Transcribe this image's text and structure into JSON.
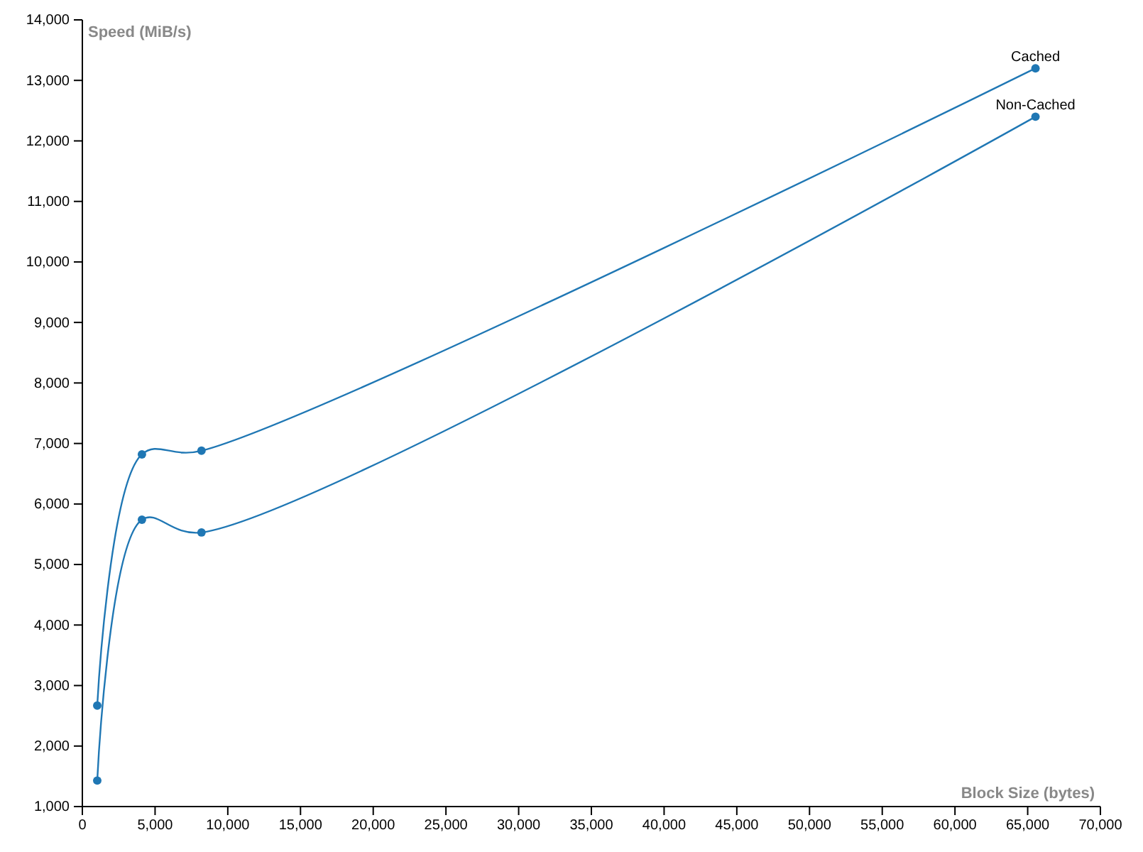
{
  "chart_data": {
    "type": "line",
    "xlabel": "Block Size (bytes)",
    "ylabel": "Speed (MiB/s)",
    "series": [
      {
        "name": "Cached",
        "color": "#1f77b4",
        "x": [
          1024,
          4096,
          8192,
          65536
        ],
        "values": [
          2670,
          6820,
          6880,
          13200
        ]
      },
      {
        "name": "Non-Cached",
        "color": "#1f77b4",
        "x": [
          1024,
          4096,
          8192,
          65536
        ],
        "values": [
          1430,
          5740,
          5530,
          12400
        ]
      }
    ],
    "xlim": [
      0,
      70000
    ],
    "xticks": [
      {
        "value": 0,
        "label": "0"
      },
      {
        "value": 5000,
        "label": "5,000"
      },
      {
        "value": 10000,
        "label": "10,000"
      },
      {
        "value": 15000,
        "label": "15,000"
      },
      {
        "value": 20000,
        "label": "20,000"
      },
      {
        "value": 25000,
        "label": "25,000"
      },
      {
        "value": 30000,
        "label": "30,000"
      },
      {
        "value": 35000,
        "label": "35,000"
      },
      {
        "value": 40000,
        "label": "40,000"
      },
      {
        "value": 45000,
        "label": "45,000"
      },
      {
        "value": 50000,
        "label": "50,000"
      },
      {
        "value": 55000,
        "label": "55,000"
      },
      {
        "value": 60000,
        "label": "60,000"
      },
      {
        "value": 65000,
        "label": "65,000"
      },
      {
        "value": 70000,
        "label": "70,000"
      }
    ],
    "ylim": [
      1000,
      14000
    ],
    "yticks": [
      {
        "value": 1000,
        "label": "1,000"
      },
      {
        "value": 2000,
        "label": "2,000"
      },
      {
        "value": 3000,
        "label": "3,000"
      },
      {
        "value": 4000,
        "label": "4,000"
      },
      {
        "value": 5000,
        "label": "5,000"
      },
      {
        "value": 6000,
        "label": "6,000"
      },
      {
        "value": 7000,
        "label": "7,000"
      },
      {
        "value": 8000,
        "label": "8,000"
      },
      {
        "value": 9000,
        "label": "9,000"
      },
      {
        "value": 10000,
        "label": "10,000"
      },
      {
        "value": 11000,
        "label": "11,000"
      },
      {
        "value": 12000,
        "label": "12,000"
      },
      {
        "value": 13000,
        "label": "13,000"
      },
      {
        "value": 14000,
        "label": "14,000"
      }
    ],
    "grid": false,
    "legend": false,
    "marker": "circle",
    "line_style": "solid"
  }
}
